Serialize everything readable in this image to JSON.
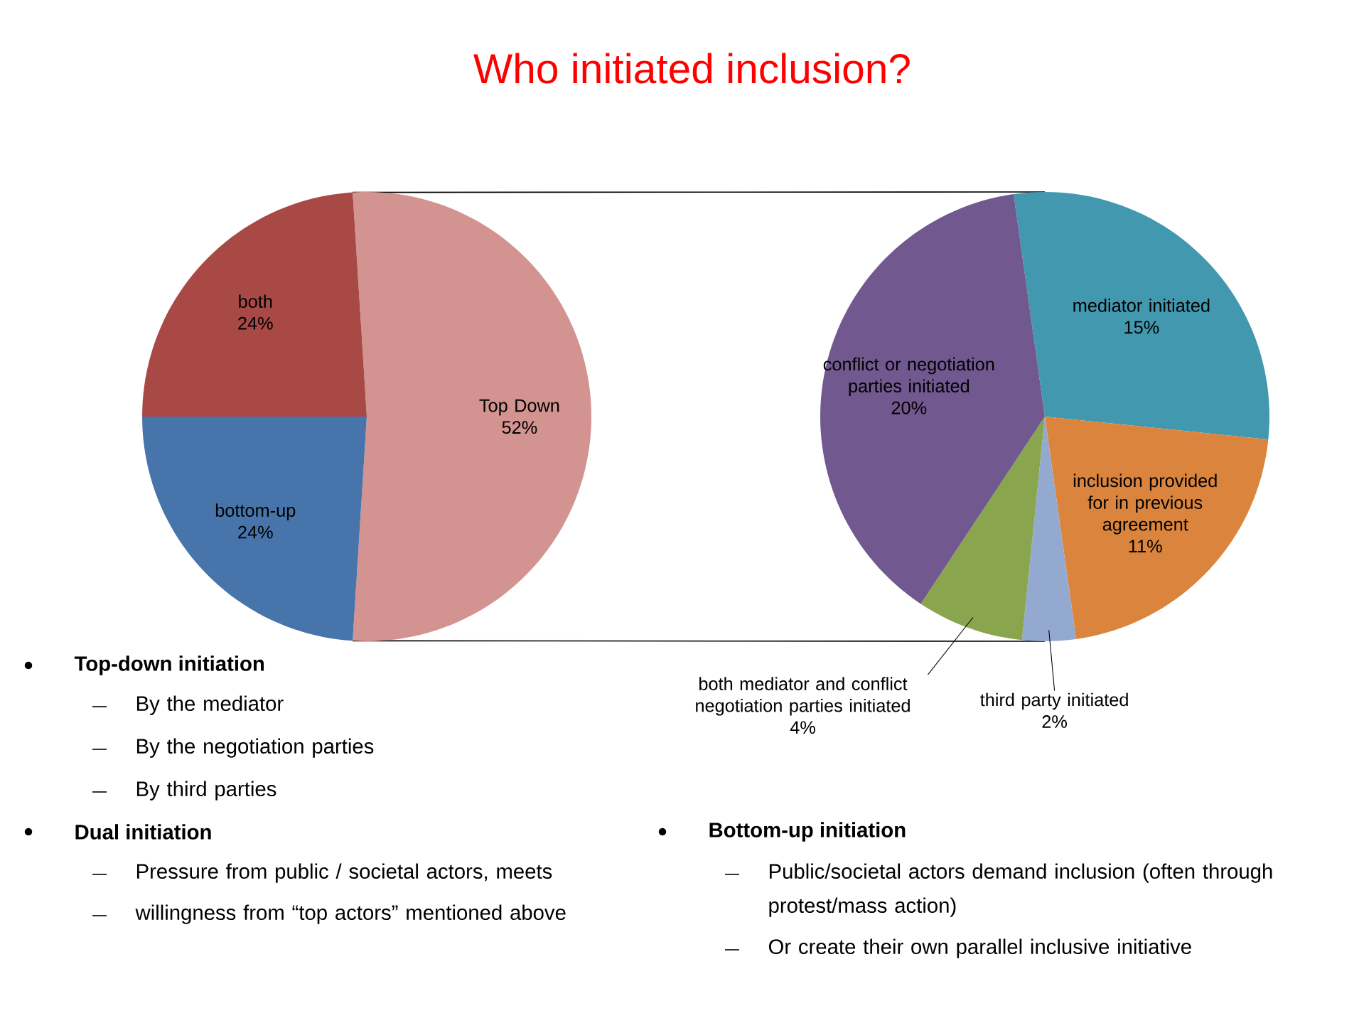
{
  "chart_data": [
    {
      "type": "pie",
      "title": "Who initiated inclusion?",
      "categories": [
        "Top Down",
        "bottom-up",
        "both"
      ],
      "values": [
        52,
        24,
        24
      ],
      "colors": [
        "#d39391",
        "#4774aa",
        "#a94946"
      ],
      "value_labels": [
        "52%",
        "24%",
        "24%"
      ],
      "annotations": [
        "Top-down initiation",
        "By the mediator",
        "By the negotiation parties",
        "By third parties",
        "Dual initiation",
        "Pressure from public / societal actors, meets",
        "willingness from “top actors” mentioned above",
        "Bottom-up initiation",
        "Public/societal actors demand inclusion (often through protest/mass action)",
        "Or create their own parallel inclusive initiative"
      ]
    },
    {
      "type": "pie",
      "categories": [
        "mediator initiated",
        "inclusion provided for in previous agreement",
        "third party initiated",
        "both mediator and conflict negotiation parties initiated",
        "conflict or negotiation parties initiated"
      ],
      "values": [
        15,
        11,
        2,
        4,
        20
      ],
      "colors": [
        "#4298af",
        "#db843d",
        "#93a9cf",
        "#89a54e",
        "#71588f"
      ],
      "value_labels": [
        "15%",
        "11%",
        "2%",
        "4%",
        "20%"
      ]
    }
  ]
}
